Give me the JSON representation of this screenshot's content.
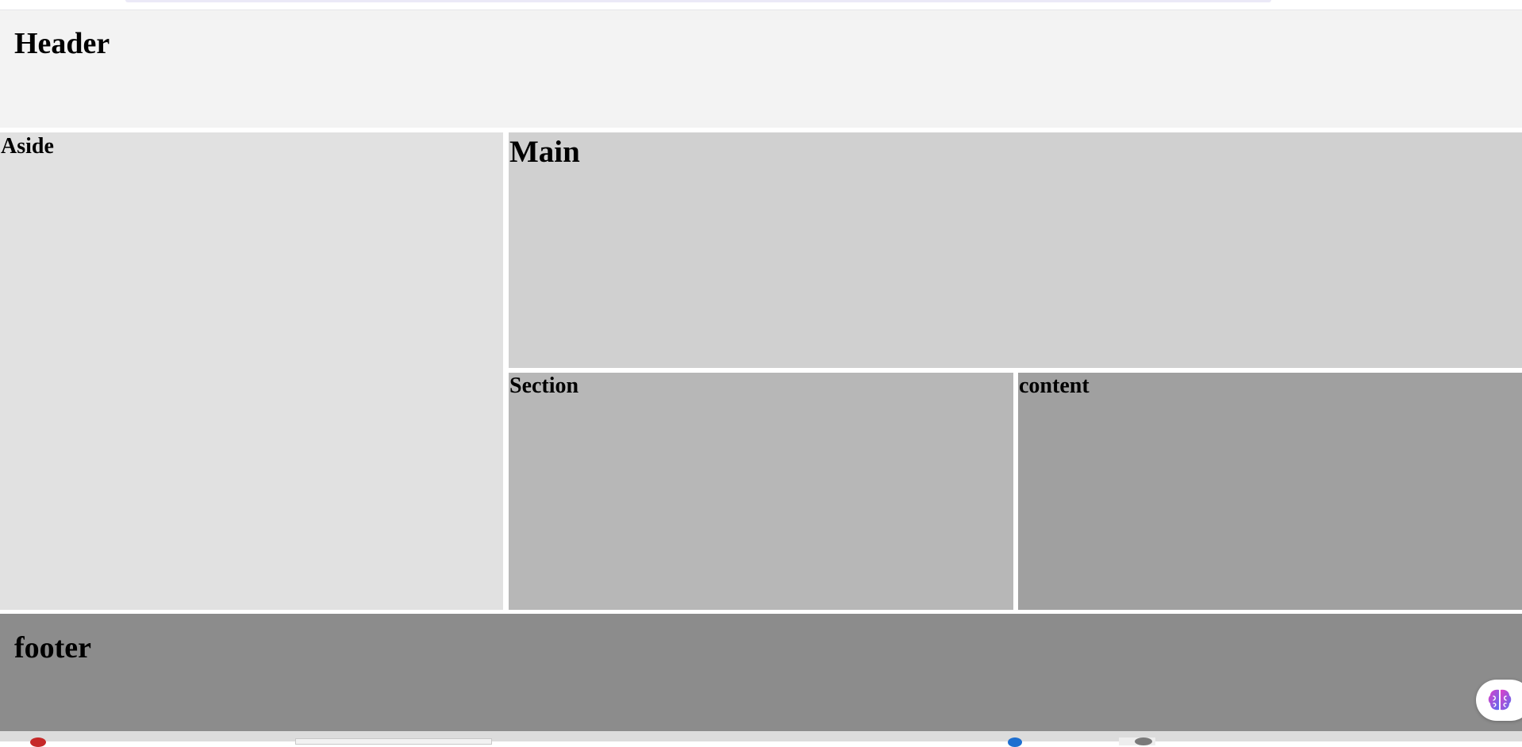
{
  "header": {
    "title": "Header"
  },
  "aside": {
    "title": "Aside"
  },
  "main": {
    "title": "Main"
  },
  "section": {
    "title": "Section"
  },
  "content": {
    "title": "content"
  },
  "footer": {
    "title": "footer"
  },
  "assistant_button": {
    "icon": "brain-icon"
  },
  "colors": {
    "header_bg": "#f3f3f3",
    "aside_bg": "#e1e1e1",
    "main_bg": "#d0d0d0",
    "section_bg": "#b7b7b7",
    "content_bg": "#a0a0a0",
    "footer_bg": "#8c8c8c"
  }
}
